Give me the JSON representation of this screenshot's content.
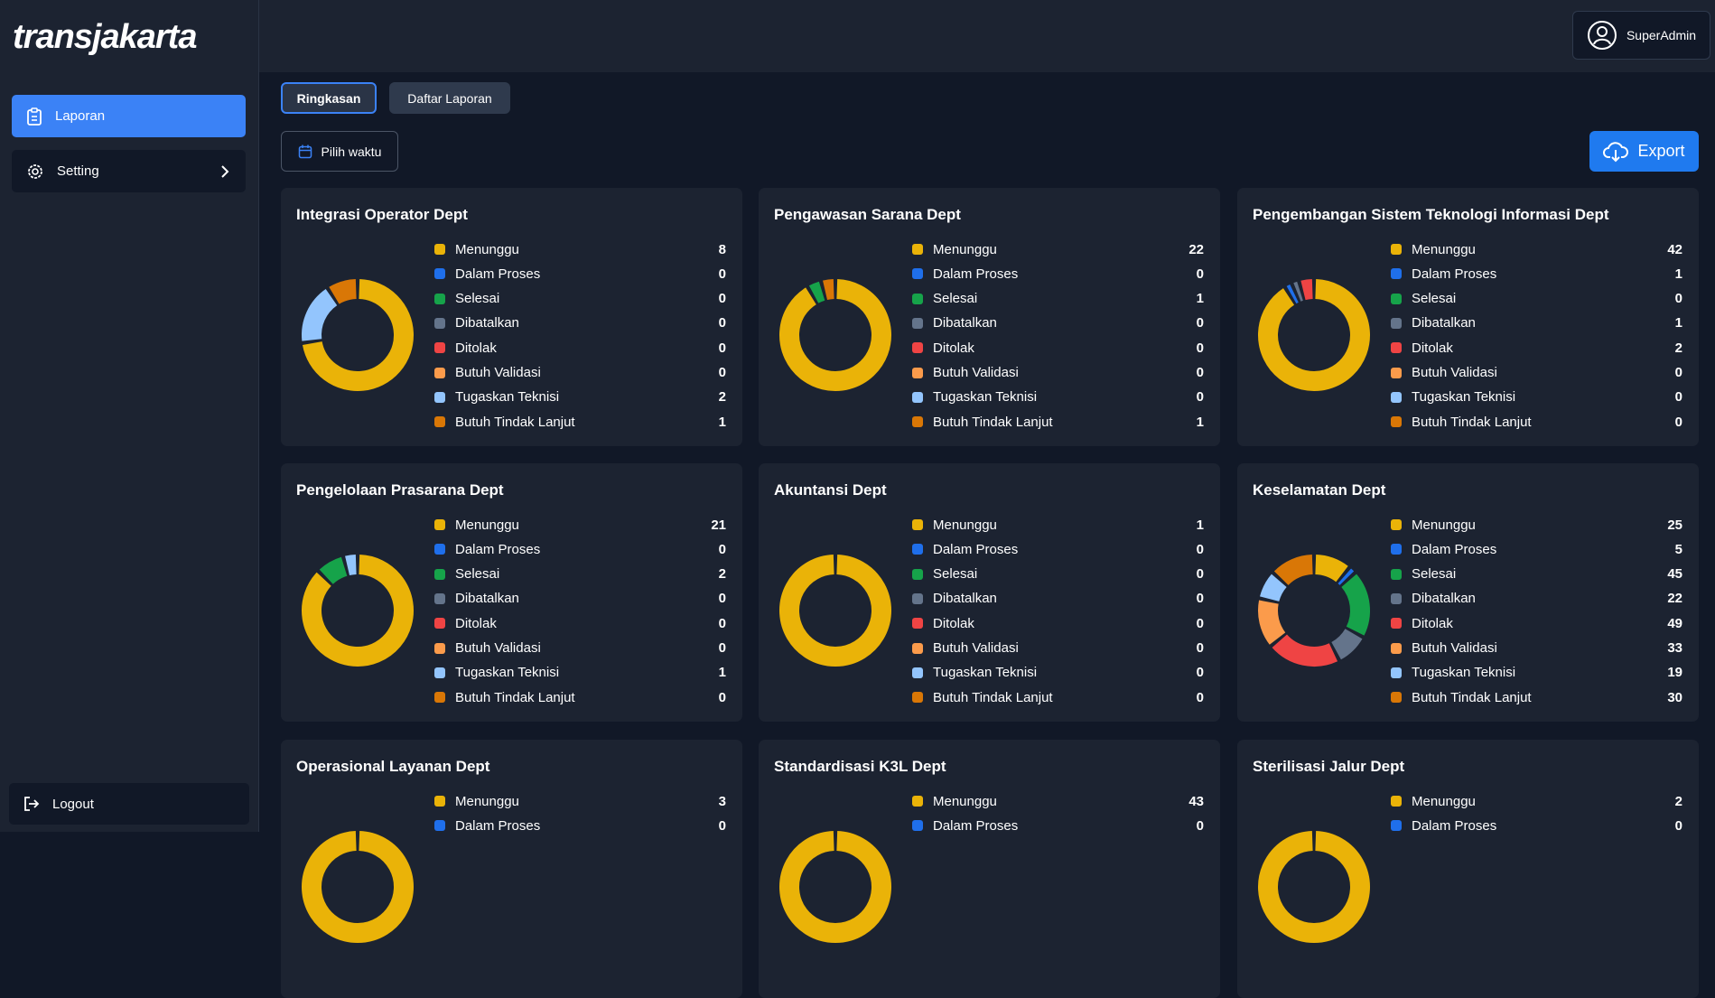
{
  "logo": "transjakarta",
  "user": "SuperAdmin",
  "sidebar": {
    "menu": [
      "Laporan",
      "Setting"
    ],
    "logout": "Logout"
  },
  "tabs": [
    "Ringkasan",
    "Daftar Laporan"
  ],
  "date_filter": "Pilih waktu",
  "export": "Export",
  "statuses": [
    {
      "name": "Menunggu",
      "color": "#eab308"
    },
    {
      "name": "Dalam Proses",
      "color": "#1f6feb"
    },
    {
      "name": "Selesai",
      "color": "#16a34a"
    },
    {
      "name": "Dibatalkan",
      "color": "#64748b"
    },
    {
      "name": "Ditolak",
      "color": "#ef4444"
    },
    {
      "name": "Butuh Validasi",
      "color": "#fb9b4b"
    },
    {
      "name": "Tugaskan Teknisi",
      "color": "#93c5fd"
    },
    {
      "name": "Butuh Tindak Lanjut",
      "color": "#d97706"
    }
  ],
  "cards": [
    {
      "title": "Integrasi Operator Dept",
      "values": [
        8,
        0,
        0,
        0,
        0,
        0,
        2,
        1
      ]
    },
    {
      "title": "Pengawasan Sarana Dept",
      "values": [
        22,
        0,
        1,
        0,
        0,
        0,
        0,
        1
      ]
    },
    {
      "title": "Pengembangan Sistem Teknologi Informasi Dept",
      "values": [
        42,
        1,
        0,
        1,
        2,
        0,
        0,
        0
      ]
    },
    {
      "title": "Pengelolaan Prasarana Dept",
      "values": [
        21,
        0,
        2,
        0,
        0,
        0,
        1,
        0
      ]
    },
    {
      "title": "Akuntansi Dept",
      "values": [
        1,
        0,
        0,
        0,
        0,
        0,
        0,
        0
      ]
    },
    {
      "title": "Keselamatan Dept",
      "values": [
        25,
        5,
        45,
        22,
        49,
        33,
        19,
        30
      ]
    },
    {
      "title": "Operasional Layanan Dept",
      "values": [
        3,
        0
      ]
    },
    {
      "title": "Standardisasi K3L Dept",
      "values": [
        43,
        0
      ]
    },
    {
      "title": "Sterilisasi Jalur Dept",
      "values": [
        2,
        0
      ]
    }
  ]
}
